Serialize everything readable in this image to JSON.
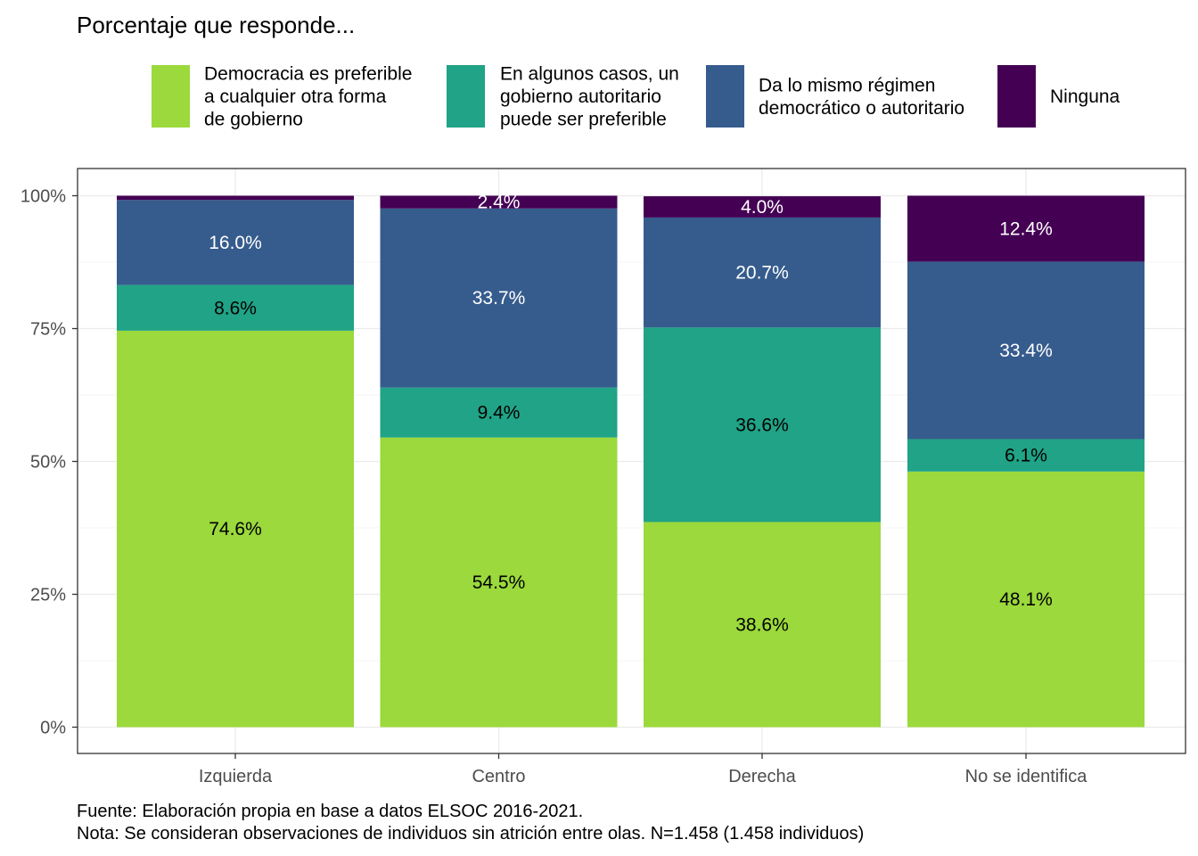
{
  "chart_data": {
    "type": "bar",
    "stacked": true,
    "title": "Porcentaje que responde...",
    "categories": [
      "Izquierda",
      "Centro",
      "Derecha",
      "No se identifica"
    ],
    "series": [
      {
        "name": "Democracia es preferible a cualquier otra forma de gobierno",
        "legend_lines": [
          "Democracia es preferible",
          "a cualquier otra forma",
          "de gobierno"
        ],
        "color": "#9bd93c",
        "label_color": "#000000",
        "values": [
          74.6,
          54.5,
          38.6,
          48.1
        ],
        "labels": [
          "74.6%",
          "54.5%",
          "38.6%",
          "48.1%"
        ]
      },
      {
        "name": "En algunos casos, un gobierno autoritario puede ser preferible",
        "legend_lines": [
          "En algunos casos, un",
          "gobierno autoritario",
          "puede ser preferible"
        ],
        "color": "#20a386",
        "label_color": "#000000",
        "values": [
          8.6,
          9.4,
          36.6,
          6.1
        ],
        "labels": [
          "8.6%",
          "9.4%",
          "36.6%",
          "6.1%"
        ]
      },
      {
        "name": "Da lo mismo régimen democrático o autoritario",
        "legend_lines": [
          "Da lo mismo régimen",
          "democrático o autoritario"
        ],
        "color": "#365c8d",
        "label_color": "#ffffff",
        "values": [
          16.0,
          33.7,
          20.7,
          33.4
        ],
        "labels": [
          "16.0%",
          "33.7%",
          "20.7%",
          "33.4%"
        ]
      },
      {
        "name": "Ninguna",
        "legend_lines": [
          "Ninguna"
        ],
        "color": "#440154",
        "label_color": "#ffffff",
        "values": [
          0.8,
          2.4,
          4.0,
          12.4
        ],
        "labels": [
          "",
          "2.4%",
          "4.0%",
          "12.4%"
        ]
      }
    ],
    "yticks": [
      0,
      25,
      50,
      75,
      100
    ],
    "ytick_labels": [
      "0%",
      "25%",
      "50%",
      "75%",
      "100%"
    ],
    "ylim": [
      0,
      100
    ],
    "xlabel": "",
    "ylabel": "",
    "grid": true,
    "legend_position": "top",
    "caption_lines": [
      "Fuente: Elaboración propia en base a datos ELSOC 2016-2021.",
      "Nota: Se consideran observaciones de individuos sin atrición entre olas. N=1.458 (1.458 individuos)"
    ]
  }
}
